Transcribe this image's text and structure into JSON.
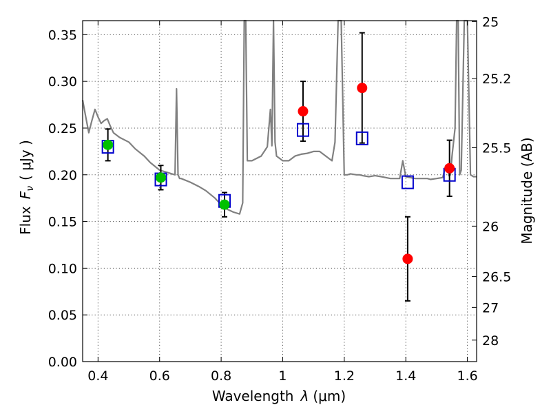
{
  "chart_data": {
    "type": "scatter",
    "xlabel_prefix": "Wavelength",
    "xlabel_sym": "λ",
    "xlabel_unit": "(μm)",
    "ylabel_prefix": "Flux",
    "ylabel_sym": "F",
    "ylabel_sub": "ν",
    "ylabel_unit": "( μJy )",
    "ylabel_right": "Magnitude (AB)",
    "xlim": [
      0.35,
      1.63
    ],
    "ylim": [
      0.0,
      0.365
    ],
    "grid": true,
    "x_ticks": [
      0.4,
      0.6,
      0.8,
      1.0,
      1.2,
      1.4,
      1.6
    ],
    "x_tick_labels": [
      "0.4",
      "0.6",
      "0.8",
      "1",
      "1.2",
      "1.4",
      "1.6"
    ],
    "y_ticks": [
      0.0,
      0.05,
      0.1,
      0.15,
      0.2,
      0.25,
      0.3,
      0.35
    ],
    "y_tick_labels": [
      "0.00",
      "0.05",
      "0.10",
      "0.15",
      "0.20",
      "0.25",
      "0.30",
      "0.35"
    ],
    "right_ticks": [
      {
        "label": "25",
        "flux": 0.364
      },
      {
        "label": "25.2",
        "flux": 0.303
      },
      {
        "label": "25.5",
        "flux": 0.229
      },
      {
        "label": "26",
        "flux": 0.145
      },
      {
        "label": "26.5",
        "flux": 0.091
      },
      {
        "label": "27",
        "flux": 0.058
      },
      {
        "label": "28",
        "flux": 0.023
      }
    ],
    "colors": {
      "spectrum": "#808080",
      "model": "#0000cc",
      "optical": "#00c000",
      "nir": "#ff0000",
      "errorbar": "#000000"
    },
    "series": [
      {
        "marker": "green-circle",
        "x": [
          0.432,
          0.604,
          0.811
        ],
        "y": [
          0.232,
          0.197,
          0.168
        ],
        "yerr": [
          0.017,
          0.013,
          0.013
        ]
      },
      {
        "marker": "red-circle",
        "x": [
          1.066,
          1.258,
          1.406,
          1.542
        ],
        "y": [
          0.268,
          0.293,
          0.11,
          0.207
        ],
        "yerr": [
          0.032,
          0.059,
          0.045,
          0.03
        ]
      },
      {
        "marker": "blue-open-square",
        "x": [
          0.432,
          0.604,
          0.811,
          1.066,
          1.258,
          1.406,
          1.542
        ],
        "y": [
          0.23,
          0.195,
          0.172,
          0.248,
          0.239,
          0.192,
          0.2
        ]
      },
      {
        "marker": "grey-line",
        "x": [
          0.35,
          0.36,
          0.37,
          0.38,
          0.39,
          0.4,
          0.41,
          0.42,
          0.43,
          0.44,
          0.45,
          0.47,
          0.5,
          0.52,
          0.55,
          0.57,
          0.6,
          0.62,
          0.65,
          0.655,
          0.66,
          0.665,
          0.67,
          0.7,
          0.73,
          0.75,
          0.78,
          0.8,
          0.82,
          0.84,
          0.86,
          0.87,
          0.875,
          0.88,
          0.885,
          0.9,
          0.93,
          0.95,
          0.96,
          0.965,
          0.97,
          0.975,
          0.98,
          1.0,
          1.02,
          1.04,
          1.06,
          1.08,
          1.1,
          1.12,
          1.14,
          1.16,
          1.17,
          1.18,
          1.19,
          1.2,
          1.21,
          1.22,
          1.24,
          1.25,
          1.26,
          1.28,
          1.3,
          1.32,
          1.35,
          1.38,
          1.39,
          1.4,
          1.43,
          1.45,
          1.47,
          1.48,
          1.5,
          1.52,
          1.53,
          1.535,
          1.54,
          1.545,
          1.55,
          1.56,
          1.565,
          1.57,
          1.575,
          1.58,
          1.59,
          1.6,
          1.61,
          1.62,
          1.63
        ],
        "y": [
          0.28,
          0.262,
          0.245,
          0.258,
          0.27,
          0.262,
          0.255,
          0.258,
          0.26,
          0.252,
          0.245,
          0.24,
          0.235,
          0.228,
          0.22,
          0.213,
          0.205,
          0.203,
          0.2,
          0.292,
          0.2,
          0.196,
          0.196,
          0.192,
          0.187,
          0.183,
          0.175,
          0.168,
          0.163,
          0.16,
          0.158,
          0.17,
          0.365,
          0.365,
          0.215,
          0.215,
          0.22,
          0.23,
          0.27,
          0.231,
          0.365,
          0.235,
          0.22,
          0.215,
          0.215,
          0.22,
          0.222,
          0.223,
          0.225,
          0.225,
          0.22,
          0.215,
          0.235,
          0.365,
          0.365,
          0.2,
          0.2,
          0.201,
          0.2,
          0.2,
          0.199,
          0.198,
          0.199,
          0.198,
          0.196,
          0.196,
          0.215,
          0.198,
          0.196,
          0.196,
          0.196,
          0.195,
          0.196,
          0.197,
          0.21,
          0.21,
          0.199,
          0.2,
          0.22,
          0.25,
          0.365,
          0.365,
          0.2,
          0.205,
          0.365,
          0.365,
          0.2,
          0.198,
          0.198
        ]
      }
    ]
  }
}
